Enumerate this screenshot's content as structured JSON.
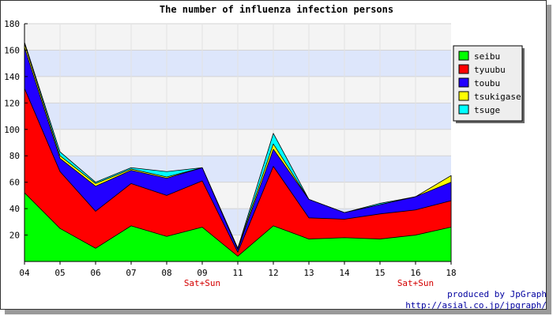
{
  "chart_data": {
    "type": "area",
    "stacked": true,
    "title": "The number of influenza infection persons",
    "xlabel": "",
    "ylabel": "",
    "categories": [
      "04",
      "05",
      "06",
      "07",
      "08",
      "09",
      "11",
      "12",
      "13",
      "14",
      "15",
      "16",
      "18"
    ],
    "ylim": [
      0,
      180
    ],
    "yticks": [
      20,
      40,
      60,
      80,
      100,
      120,
      140,
      160,
      180
    ],
    "weekend_label": "Sat+Sun",
    "weekend_after": [
      "09",
      "16"
    ],
    "grid": true,
    "legend_position": "right",
    "series": [
      {
        "name": "seibu",
        "color": "#00ff00",
        "values": [
          52,
          25,
          10,
          27,
          19,
          26,
          4,
          27,
          17,
          18,
          17,
          20,
          26
        ]
      },
      {
        "name": "tyuubu",
        "color": "#ff0000",
        "values": [
          79,
          43,
          28,
          32,
          31,
          35,
          3,
          45,
          16,
          14,
          19,
          19,
          20
        ]
      },
      {
        "name": "toubu",
        "color": "#2200ff",
        "values": [
          31,
          10,
          19,
          10,
          13,
          10,
          2,
          13,
          14,
          5,
          7,
          10,
          14
        ]
      },
      {
        "name": "tsukigase",
        "color": "#ffff00",
        "values": [
          3,
          2,
          2,
          1,
          1,
          0,
          1,
          4,
          0,
          0,
          0,
          0,
          5
        ]
      },
      {
        "name": "tsuge",
        "color": "#00ffff",
        "values": [
          1,
          3,
          1,
          1,
          4,
          0,
          0,
          8,
          0,
          0,
          1,
          0,
          0
        ]
      }
    ]
  },
  "credit": {
    "line1": "produced by JpGraph",
    "line2": "http://asial.co.jp/jpgraph/"
  }
}
